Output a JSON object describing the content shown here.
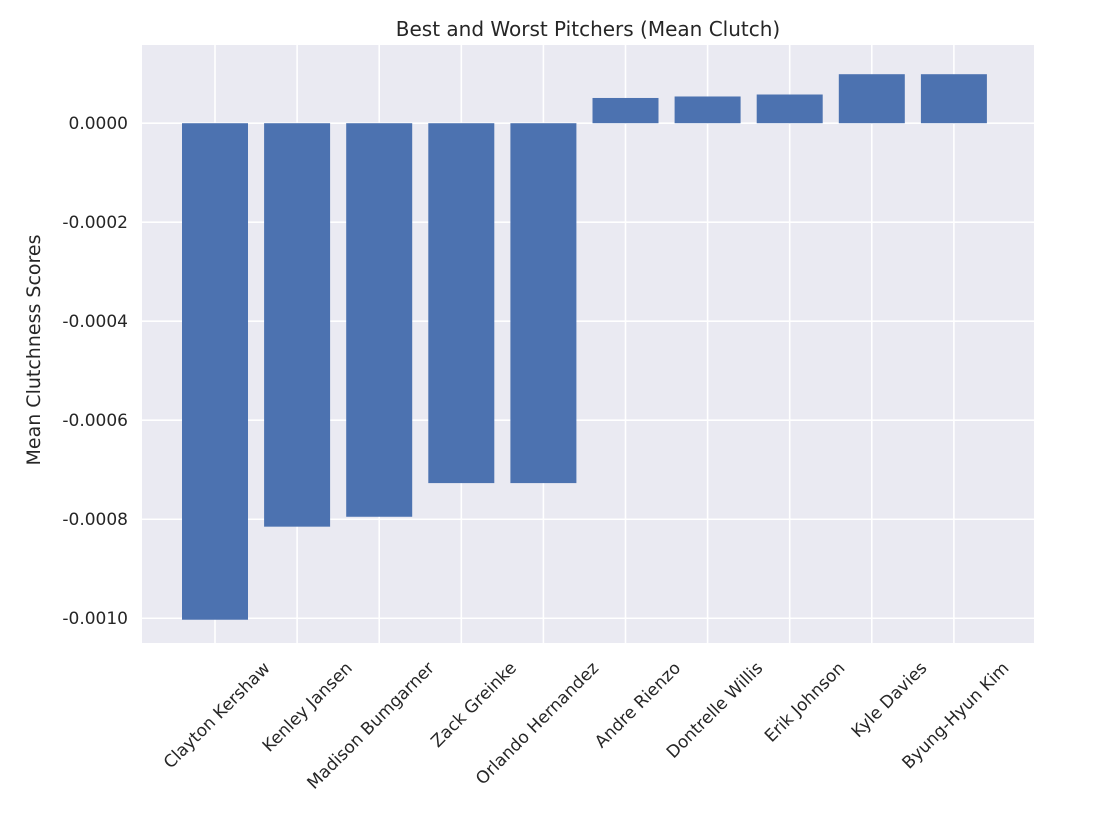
{
  "chart_data": {
    "type": "bar",
    "title": "Best and Worst Pitchers (Mean Clutch)",
    "xlabel": "",
    "ylabel": "Mean Clutchness Scores",
    "categories": [
      "Clayton Kershaw",
      "Kenley Jansen",
      "Madison Bumgarner",
      "Zack Greinke",
      "Orlando Hernandez",
      "Andre Rienzo",
      "Dontrelle Willis",
      "Erik Johnson",
      "Kyle Davies",
      "Byung-Hyun Kim"
    ],
    "values": [
      -0.001003,
      -0.000815,
      -0.000795,
      -0.000727,
      -0.000727,
      5.1e-05,
      5.4e-05,
      5.8e-05,
      9.9e-05,
      9.9e-05
    ],
    "ylim": [
      -0.00105,
      0.000158
    ],
    "yticks": [
      0.0,
      -0.0002,
      -0.0004,
      -0.0006,
      -0.0008,
      -0.001
    ],
    "ytick_labels": [
      "0.0000",
      "-0.0002",
      "-0.0004",
      "-0.0006",
      "-0.0008",
      "-0.0010"
    ],
    "grid": true,
    "bar_color": "#4C72B0",
    "background_color": "#EAEAF2"
  }
}
